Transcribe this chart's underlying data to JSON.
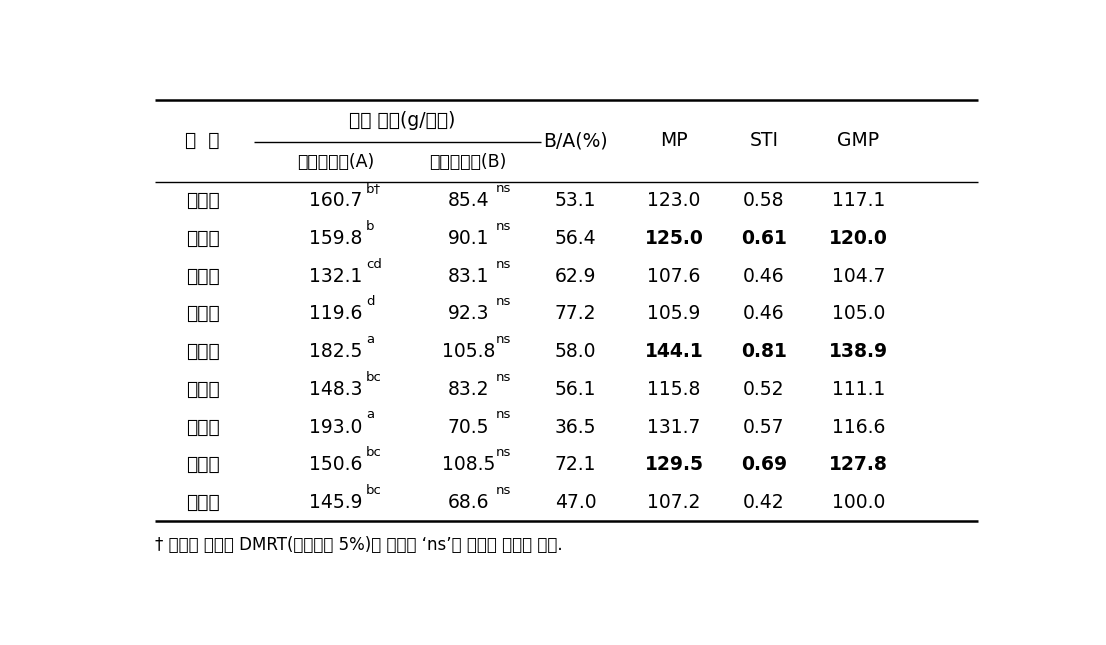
{
  "rows": [
    [
      "강다옥",
      "160.7",
      "b†",
      "85.4",
      "ns",
      "53.1",
      "123.0",
      "0.58",
      "117.1",
      false
    ],
    [
      "광평옥",
      "159.8",
      "b",
      "90.1",
      "ns",
      "56.4",
      "125.0",
      "0.61",
      "120.0",
      true
    ],
    [
      "신광옥",
      "132.1",
      "cd",
      "83.1",
      "ns",
      "62.9",
      "107.6",
      "0.46",
      "104.7",
      false
    ],
    [
      "안다옥",
      "119.6",
      "d",
      "92.3",
      "ns",
      "77.2",
      "105.9",
      "0.46",
      "105.0",
      false
    ],
    [
      "양안옥",
      "182.5",
      "a",
      "105.8",
      "ns",
      "58.0",
      "144.1",
      "0.81",
      "138.9",
      true
    ],
    [
      "장다옥",
      "148.3",
      "bc",
      "83.2",
      "ns",
      "56.1",
      "115.8",
      "0.52",
      "111.1",
      false
    ],
    [
      "청다옥",
      "193.0",
      "a",
      "70.5",
      "ns",
      "36.5",
      "131.7",
      "0.57",
      "116.6",
      false
    ],
    [
      "평강옥",
      "150.6",
      "bc",
      "108.5",
      "ns",
      "72.1",
      "129.5",
      "0.69",
      "127.8",
      true
    ],
    [
      "평안옥",
      "145.9",
      "bc",
      "68.6",
      "ns",
      "47.0",
      "107.2",
      "0.42",
      "100.0",
      false
    ]
  ],
  "footnote": "† 품종간 비교는 DMRT(유의수준 5%)로 하였고 ‘ns’는 품종간 차이가 없음.",
  "bg_color": "#ffffff",
  "text_color": "#000000"
}
